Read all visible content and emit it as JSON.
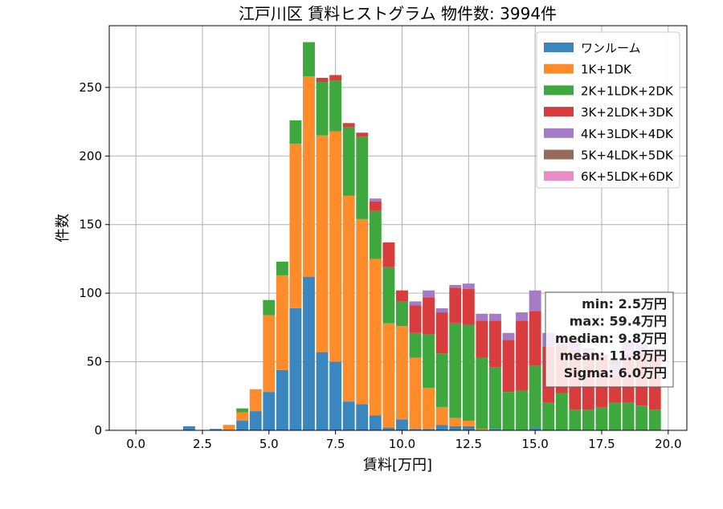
{
  "chart_data": {
    "type": "bar",
    "stacked": true,
    "title": "江戸川区 賃料ヒストグラム 物件数: 3994件",
    "xlabel": "賃料[万円]",
    "ylabel": "件数",
    "xlim": [
      -1.0,
      20.7
    ],
    "ylim": [
      0,
      295
    ],
    "bin_width": 0.5,
    "xticks": [
      0.0,
      2.5,
      5.0,
      7.5,
      10.0,
      12.5,
      15.0,
      17.5,
      20.0
    ],
    "xtick_labels": [
      "0.0",
      "2.5",
      "5.0",
      "7.5",
      "10.0",
      "12.5",
      "15.0",
      "17.5",
      "20.0"
    ],
    "yticks": [
      0,
      50,
      100,
      150,
      200,
      250
    ],
    "ytick_labels": [
      "0",
      "50",
      "100",
      "150",
      "200",
      "250"
    ],
    "grid": true,
    "legend_position": "top-right",
    "x": [
      2.0,
      2.5,
      3.0,
      3.5,
      4.0,
      4.5,
      5.0,
      5.5,
      6.0,
      6.5,
      7.0,
      7.5,
      8.0,
      8.5,
      9.0,
      9.5,
      10.0,
      10.5,
      11.0,
      11.5,
      12.0,
      12.5,
      13.0,
      13.5,
      14.0,
      14.5,
      15.0,
      15.5,
      16.0,
      16.5,
      17.0,
      17.5,
      18.0,
      18.5,
      19.0,
      19.5
    ],
    "series": [
      {
        "name": "ワンルーム",
        "color": "#3a87c0",
        "values": [
          3,
          0,
          1,
          0,
          7,
          14,
          28,
          44,
          89,
          112,
          57,
          50,
          21,
          19,
          11,
          2,
          8,
          1,
          1,
          4,
          3,
          3,
          0,
          1,
          0,
          0,
          2,
          0,
          0,
          0,
          0,
          0,
          0,
          0,
          0,
          0
        ]
      },
      {
        "name": "1K+1DK",
        "color": "#ff8c2a",
        "values": [
          0,
          0,
          0,
          4,
          6,
          16,
          56,
          69,
          120,
          146,
          158,
          168,
          150,
          135,
          114,
          76,
          68,
          52,
          30,
          13,
          6,
          4,
          1,
          0,
          0,
          0,
          0,
          0,
          0,
          0,
          0,
          0,
          0,
          0,
          0,
          0
        ]
      },
      {
        "name": "2K+1LDK+2DK",
        "color": "#3ea83e",
        "values": [
          0,
          0,
          0,
          0,
          3,
          0,
          11,
          10,
          17,
          25,
          39,
          37,
          50,
          60,
          35,
          41,
          18,
          18,
          39,
          39,
          69,
          70,
          52,
          45,
          28,
          29,
          45,
          20,
          27,
          15,
          15,
          17,
          20,
          20,
          18,
          15
        ]
      },
      {
        "name": "3K+2LDK+3DK",
        "color": "#d93c3c",
        "values": [
          0,
          0,
          0,
          0,
          0,
          0,
          0,
          0,
          0,
          0,
          3,
          4,
          3,
          3,
          7,
          18,
          8,
          20,
          27,
          30,
          26,
          26,
          27,
          34,
          38,
          51,
          40,
          41,
          35,
          44,
          40,
          38,
          20,
          35,
          40,
          40
        ]
      },
      {
        "name": "4K+3LDK+4DK",
        "color": "#a57bc6",
        "values": [
          0,
          0,
          0,
          0,
          0,
          0,
          0,
          0,
          0,
          0,
          0,
          0,
          0,
          0,
          2,
          0,
          0,
          3,
          5,
          3,
          2,
          4,
          5,
          5,
          5,
          6,
          15,
          10,
          5,
          6,
          5,
          0,
          8,
          10,
          5,
          5
        ]
      },
      {
        "name": "5K+4LDK+5DK",
        "color": "#97695a",
        "values": [
          0,
          0,
          0,
          0,
          0,
          0,
          0,
          0,
          0,
          0,
          0,
          0,
          0,
          0,
          0,
          0,
          0,
          0,
          0,
          0,
          0,
          0,
          0,
          0,
          0,
          0,
          0,
          0,
          0,
          0,
          0,
          0,
          3,
          0,
          0,
          0
        ]
      },
      {
        "name": "6K+5LDK+6DK",
        "color": "#e98bc9",
        "values": [
          0,
          0,
          0,
          0,
          0,
          0,
          0,
          0,
          0,
          0,
          0,
          0,
          0,
          0,
          0,
          0,
          0,
          0,
          0,
          0,
          0,
          0,
          0,
          0,
          0,
          0,
          0,
          0,
          0,
          0,
          0,
          0,
          0,
          0,
          0,
          0
        ]
      }
    ],
    "stats": [
      "min: 2.5万円",
      "max: 59.4万円",
      "median: 9.8万円",
      "mean: 11.8万円",
      "Sigma: 6.0万円"
    ]
  }
}
